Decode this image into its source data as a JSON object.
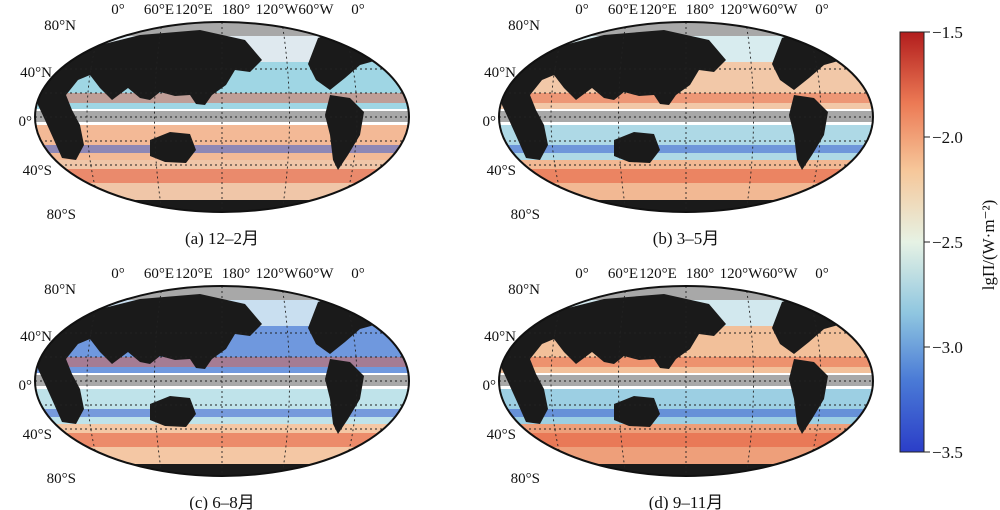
{
  "panels": [
    {
      "caption": "(a) 12–2月"
    },
    {
      "caption": "(b) 3–5月"
    },
    {
      "caption": "(c) 6–8月"
    },
    {
      "caption": "(d) 9–11月"
    }
  ],
  "longitude_labels": [
    "0°",
    "60°E",
    "120°E",
    "180°",
    "120°W",
    "60°W",
    "0°"
  ],
  "latitude_labels": [
    "80°N",
    "40°N",
    "0°",
    "40°S",
    "80°S"
  ],
  "colorbar": {
    "label": "lgΠ/(W·m⁻²)",
    "ticks": [
      "−1.5",
      "−2.0",
      "−2.5",
      "−3.0",
      "−3.5"
    ],
    "range": [
      -3.5,
      -1.5
    ],
    "colors": [
      "#2b3ec8",
      "#4a7ad6",
      "#8fc6e0",
      "#e6f2e4",
      "#f6c79a",
      "#ec7a55",
      "#b21d1d"
    ]
  },
  "colors": {
    "land": "#1a1a1a",
    "missing": "#a8a8a8",
    "ocean_low": "#3a5fd0",
    "ocean_high": "#e65a3a"
  }
}
